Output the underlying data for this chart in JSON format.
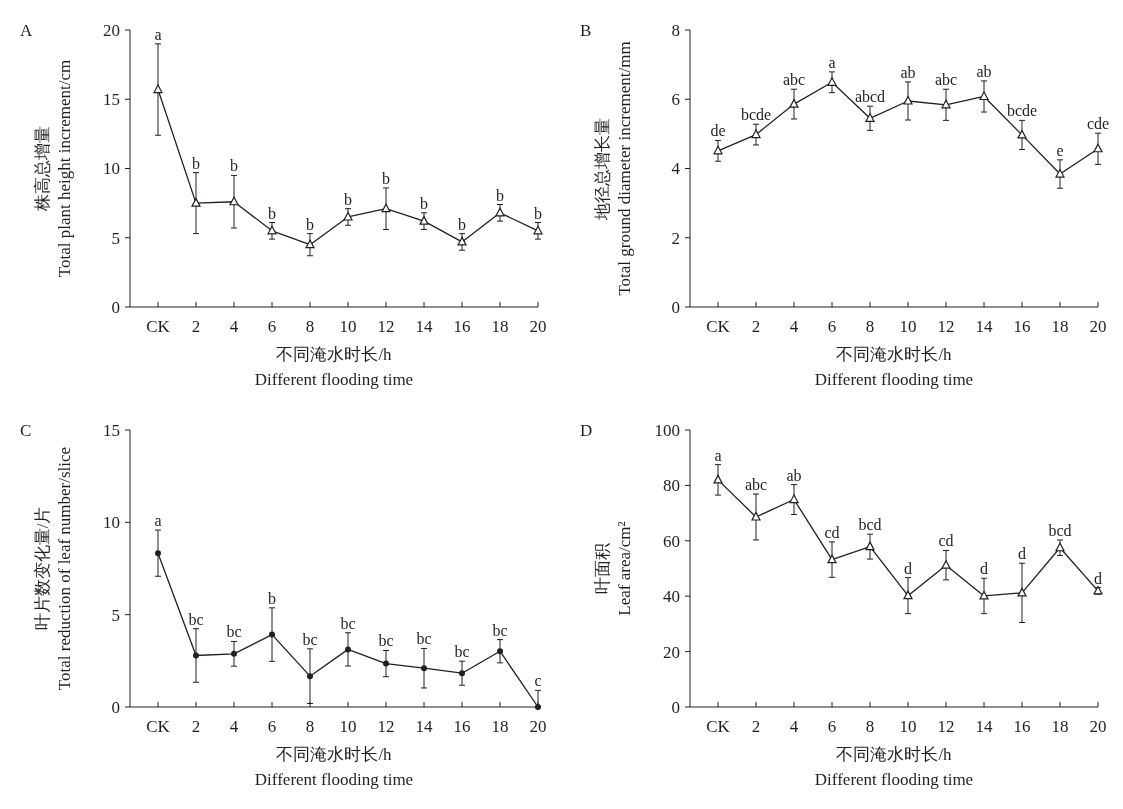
{
  "chart_data": [
    {
      "type": "line",
      "title": "A",
      "xlabel": "不同淹水时长/h\nDifferent flooding time",
      "ylabel": "株高总增量\nTotal plant height increment/cm",
      "categories": [
        "CK",
        "2",
        "4",
        "6",
        "8",
        "10",
        "12",
        "14",
        "16",
        "18",
        "20"
      ],
      "ylim": [
        0,
        20
      ],
      "yticks": [
        0,
        5,
        10,
        15,
        20
      ],
      "grid": false,
      "marker": "triangle",
      "line_style": "solid",
      "series": [
        {
          "color": "#231f20",
          "values": [
            15.7,
            7.5,
            7.6,
            5.5,
            4.5,
            6.5,
            7.1,
            6.2,
            4.7,
            6.8,
            5.5
          ],
          "errors": [
            3.3,
            2.2,
            1.9,
            0.6,
            0.8,
            0.6,
            1.5,
            0.6,
            0.6,
            0.6,
            0.6
          ],
          "value_labels": [
            "a",
            "b",
            "b",
            "b",
            "b",
            "b",
            "b",
            "b",
            "b",
            "b",
            "b"
          ]
        }
      ]
    },
    {
      "type": "line",
      "title": "B",
      "xlabel": "不同淹水时长/h\nDifferent flooding time",
      "ylabel": "地径总增长量\nTotal ground diameter increment/mm",
      "categories": [
        "CK",
        "2",
        "4",
        "6",
        "8",
        "10",
        "12",
        "14",
        "16",
        "18",
        "20"
      ],
      "ylim": [
        0,
        8
      ],
      "yticks": [
        0,
        2,
        4,
        6,
        8
      ],
      "grid": false,
      "marker": "triangle",
      "line_style": "solid",
      "series": [
        {
          "color": "#231f20",
          "values": [
            4.51,
            4.98,
            5.86,
            6.49,
            5.45,
            5.95,
            5.84,
            6.08,
            4.97,
            3.84,
            4.57
          ],
          "errors": [
            0.3,
            0.3,
            0.43,
            0.3,
            0.35,
            0.55,
            0.45,
            0.45,
            0.42,
            0.41,
            0.45
          ],
          "value_labels": [
            "de",
            "bcde",
            "abc",
            "a",
            "abcd",
            "ab",
            "abc",
            "ab",
            "bcde",
            "e",
            "cde"
          ]
        }
      ]
    },
    {
      "type": "line",
      "title": "C",
      "xlabel": "不同淹水时长/h\nDifferent flooding time",
      "ylabel": "叶片数变化量/片\nTotal reduction of leaf number/slice",
      "categories": [
        "CK",
        "2",
        "4",
        "6",
        "8",
        "10",
        "12",
        "14",
        "16",
        "18",
        "20"
      ],
      "ylim": [
        0,
        15
      ],
      "yticks": [
        0,
        5,
        10,
        15
      ],
      "grid": false,
      "marker": "circle",
      "line_style": "solid",
      "series": [
        {
          "color": "#231f20",
          "values": [
            8.33,
            2.79,
            2.88,
            3.92,
            1.67,
            3.12,
            2.35,
            2.1,
            1.83,
            3.02,
            0
          ],
          "errors": [
            1.25,
            1.45,
            0.67,
            1.45,
            1.48,
            0.9,
            0.71,
            1.07,
            0.65,
            0.63,
            [
              0,
              0.9
            ]
          ],
          "value_labels": [
            "a",
            "bc",
            "bc",
            "b",
            "bc",
            "bc",
            "bc",
            "bc",
            "bc",
            "bc",
            "c"
          ]
        }
      ]
    },
    {
      "type": "line",
      "title": "D",
      "xlabel": "不同淹水时长/h\nDifferent flooding time",
      "ylabel": "叶面积\nLeaf area/cm²",
      "categories": [
        "CK",
        "2",
        "4",
        "6",
        "8",
        "10",
        "12",
        "14",
        "16",
        "18",
        "20"
      ],
      "ylim": [
        0,
        100
      ],
      "yticks": [
        0,
        20,
        40,
        60,
        80,
        100
      ],
      "grid": false,
      "marker": "triangle",
      "line_style": "solid",
      "series": [
        {
          "color": "#231f20",
          "values": [
            82.0,
            68.6,
            74.9,
            53.2,
            57.9,
            40.2,
            51.2,
            40.1,
            41.2,
            57.5,
            41.9
          ],
          "errors": [
            5.5,
            8.3,
            5.4,
            6.4,
            4.5,
            6.5,
            5.3,
            6.4,
            10.7,
            2.8,
            1.2
          ],
          "value_labels": [
            "a",
            "abc",
            "ab",
            "cd",
            "bcd",
            "d",
            "cd",
            "d",
            "d",
            "bcd",
            "d"
          ]
        }
      ]
    }
  ]
}
